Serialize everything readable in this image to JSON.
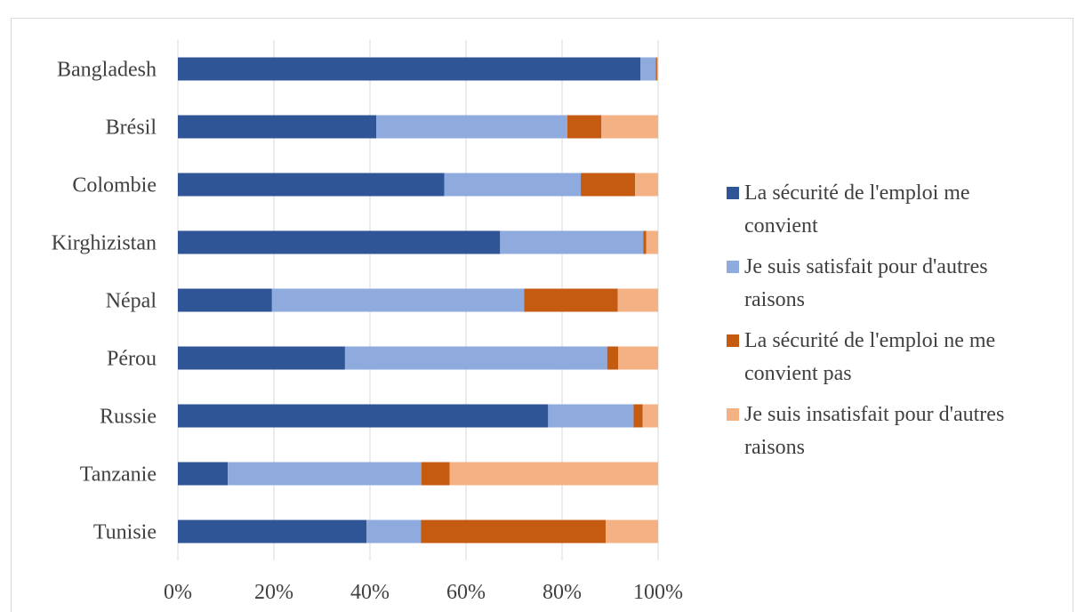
{
  "chart_data": {
    "type": "bar",
    "orientation": "horizontal",
    "stacked": "percent",
    "categories": [
      "Bangladesh",
      "Brésil",
      "Colombie",
      "Kirghizistan",
      "Népal",
      "Pérou",
      "Russie",
      "Tanzanie",
      "Tunisie"
    ],
    "series": [
      {
        "name": "La sécurité de l'emploi me convient",
        "color": "#2f5597",
        "values": [
          96.3,
          41.3,
          55.5,
          67.1,
          19.6,
          34.8,
          77.1,
          10.4,
          39.3
        ]
      },
      {
        "name": "Je suis satisfait pour d'autres raisons",
        "color": "#8faadc",
        "values": [
          3.2,
          39.8,
          28.4,
          29.8,
          52.5,
          54.6,
          17.8,
          40.3,
          11.3
        ]
      },
      {
        "name": "La sécurité de l'emploi ne me convient pas",
        "color": "#c55a11",
        "values": [
          0.3,
          7.1,
          11.3,
          0.6,
          19.5,
          2.3,
          1.9,
          5.9,
          38.5
        ]
      },
      {
        "name": "Je suis insatisfait pour d'autres raisons",
        "color": "#f4b183",
        "values": [
          0.2,
          11.8,
          4.8,
          2.5,
          8.4,
          8.3,
          3.2,
          43.4,
          10.9
        ]
      }
    ],
    "x_ticks": [
      "0%",
      "20%",
      "40%",
      "60%",
      "80%",
      "100%"
    ],
    "xlim": [
      0,
      100
    ],
    "grid": "vertical",
    "legend_position": "right",
    "title": "",
    "xlabel": "",
    "ylabel": ""
  }
}
